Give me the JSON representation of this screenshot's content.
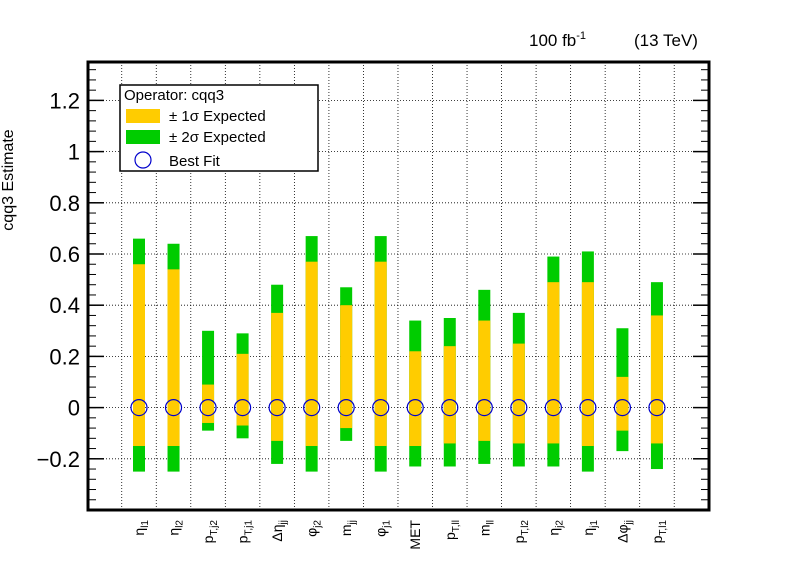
{
  "header": {
    "lumi": "100 fb",
    "lumi_sup": "-1",
    "energy": "(13 TeV)"
  },
  "legend": {
    "title": "Operator: cqq3",
    "entries": [
      {
        "label": "± 1σ Expected",
        "symbol": "box",
        "color": "#ffcc00"
      },
      {
        "label": "± 2σ Expected",
        "symbol": "box",
        "color": "#00cc00"
      },
      {
        "label": "Best Fit",
        "symbol": "circle",
        "color": "#0000cc"
      }
    ]
  },
  "chart_data": {
    "type": "errorbar",
    "ylabel": "cqq3 Estimate",
    "ylim": [
      -0.4,
      1.35
    ],
    "yticks": [
      -0.2,
      0,
      0.2,
      0.4,
      0.6,
      0.8,
      1,
      1.2
    ],
    "ytick_labels": [
      "−0.2",
      "0",
      "0.2",
      "0.4",
      "0.6",
      "0.8",
      "1",
      "1.2"
    ],
    "grid": true,
    "legend_position": "top-left",
    "colors": {
      "sigma1": "#ffcc00",
      "sigma2": "#00cc00",
      "best_fit": "#0000cc"
    },
    "categories": [
      {
        "base": "η",
        "sub": "l1"
      },
      {
        "base": "η",
        "sub": "l2"
      },
      {
        "base": "p",
        "sub": "T,j2"
      },
      {
        "base": "p",
        "sub": "T,j1"
      },
      {
        "base": "Δη",
        "sub": "jj"
      },
      {
        "base": "φ",
        "sub": "j2"
      },
      {
        "base": "m",
        "sub": "jj"
      },
      {
        "base": "φ",
        "sub": "j1"
      },
      {
        "base": "MET",
        "sub": ""
      },
      {
        "base": "p",
        "sub": "T,ll"
      },
      {
        "base": "m",
        "sub": "ll"
      },
      {
        "base": "p",
        "sub": "T,l2"
      },
      {
        "base": "η",
        "sub": "j2"
      },
      {
        "base": "η",
        "sub": "j1"
      },
      {
        "base": "Δφ",
        "sub": "jj"
      },
      {
        "base": "p",
        "sub": "T,l1"
      }
    ],
    "best_fit": [
      0,
      0,
      0,
      0,
      0,
      0,
      0,
      0,
      0,
      0,
      0,
      0,
      0,
      0,
      0,
      0
    ],
    "sigma1": [
      [
        -0.15,
        0.56
      ],
      [
        -0.15,
        0.54
      ],
      [
        -0.06,
        0.09
      ],
      [
        -0.07,
        0.21
      ],
      [
        -0.13,
        0.37
      ],
      [
        -0.15,
        0.57
      ],
      [
        -0.08,
        0.4
      ],
      [
        -0.15,
        0.57
      ],
      [
        -0.15,
        0.22
      ],
      [
        -0.14,
        0.24
      ],
      [
        -0.13,
        0.34
      ],
      [
        -0.14,
        0.25
      ],
      [
        -0.14,
        0.49
      ],
      [
        -0.15,
        0.49
      ],
      [
        -0.09,
        0.12
      ],
      [
        -0.14,
        0.36
      ]
    ],
    "sigma2": [
      [
        -0.25,
        0.66
      ],
      [
        -0.25,
        0.64
      ],
      [
        -0.09,
        0.3
      ],
      [
        -0.12,
        0.29
      ],
      [
        -0.22,
        0.48
      ],
      [
        -0.25,
        0.67
      ],
      [
        -0.13,
        0.47
      ],
      [
        -0.25,
        0.67
      ],
      [
        -0.23,
        0.34
      ],
      [
        -0.23,
        0.35
      ],
      [
        -0.22,
        0.46
      ],
      [
        -0.23,
        0.37
      ],
      [
        -0.23,
        0.59
      ],
      [
        -0.25,
        0.61
      ],
      [
        -0.17,
        0.31
      ],
      [
        -0.24,
        0.49
      ]
    ]
  }
}
